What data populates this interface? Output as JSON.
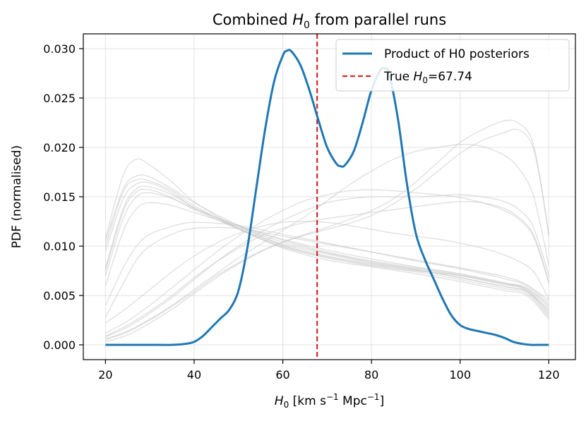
{
  "chart_data": {
    "type": "line",
    "title_prefix": "Combined ",
    "title_var": "H",
    "title_sub": "0",
    "title_suffix": " from parallel runs",
    "xlabel_var": "H",
    "xlabel_sub": "0",
    "xlabel_units": " [km s",
    "xlabel_exp1": "−1",
    "xlabel_mid": " Mpc",
    "xlabel_exp2": "−1",
    "xlabel_end": "]",
    "ylabel": "PDF (normalised)",
    "xlim": [
      15,
      126
    ],
    "ylim": [
      -0.0015,
      0.0315
    ],
    "xticks": [
      20,
      40,
      60,
      80,
      100,
      120
    ],
    "yticks": [
      0.0,
      0.005,
      0.01,
      0.015,
      0.02,
      0.025,
      0.03
    ],
    "grid": true,
    "legend_position": "top-right",
    "legend": {
      "product_label": "Product of H0 posteriors",
      "true_prefix": "True ",
      "true_var": "H",
      "true_sub": "0",
      "true_suffix": "=67.74"
    },
    "true_h0": 67.74,
    "colors": {
      "product": "#1f77b4",
      "true_line": "#d62728",
      "runs": "#c8c8c8"
    },
    "product": {
      "name": "Product of H0 posteriors",
      "x": [
        20,
        25,
        30,
        35,
        38,
        40,
        42,
        44,
        46,
        48,
        50,
        52,
        54,
        56,
        58,
        60,
        61,
        62,
        64,
        66,
        68,
        70,
        72,
        73,
        74,
        76,
        78,
        80,
        82,
        83,
        84,
        86,
        88,
        90,
        92,
        94,
        96,
        98,
        100,
        102,
        104,
        106,
        108,
        110,
        112,
        114,
        116,
        118,
        120
      ],
      "y": [
        0,
        0,
        0,
        0,
        0.0001,
        0.0003,
        0.0009,
        0.0018,
        0.0027,
        0.0036,
        0.0055,
        0.0098,
        0.0158,
        0.0218,
        0.0266,
        0.0293,
        0.0298,
        0.0297,
        0.0283,
        0.0258,
        0.0228,
        0.02,
        0.0184,
        0.0181,
        0.0182,
        0.0196,
        0.0225,
        0.0258,
        0.0278,
        0.028,
        0.0274,
        0.0228,
        0.0163,
        0.0113,
        0.0087,
        0.0067,
        0.0047,
        0.003,
        0.002,
        0.0016,
        0.0014,
        0.0012,
        0.001,
        0.0007,
        0.0003,
        0.0001,
        0,
        0,
        0
      ]
    },
    "runs": [
      {
        "x": [
          20,
          24,
          27,
          30,
          35,
          40,
          50,
          60,
          70,
          80,
          90,
          100,
          110,
          115,
          120
        ],
        "y": [
          0.0105,
          0.0158,
          0.0171,
          0.017,
          0.0158,
          0.0144,
          0.0121,
          0.0101,
          0.009,
          0.0082,
          0.0076,
          0.0068,
          0.0059,
          0.0054,
          0.003
        ]
      },
      {
        "x": [
          20,
          24,
          27,
          30,
          35,
          40,
          50,
          60,
          70,
          80,
          90,
          100,
          110,
          115,
          120
        ],
        "y": [
          0.01,
          0.0155,
          0.0167,
          0.0166,
          0.0156,
          0.0141,
          0.0118,
          0.01,
          0.0089,
          0.0081,
          0.0075,
          0.007,
          0.0062,
          0.0055,
          0.0032
        ]
      },
      {
        "x": [
          20,
          24,
          27,
          30,
          35,
          40,
          50,
          60,
          70,
          80,
          90,
          100,
          110,
          115,
          120
        ],
        "y": [
          0.0095,
          0.0148,
          0.0163,
          0.0164,
          0.0154,
          0.0139,
          0.0117,
          0.0099,
          0.0088,
          0.008,
          0.0074,
          0.0066,
          0.0057,
          0.0052,
          0.0028
        ]
      },
      {
        "x": [
          20,
          24,
          27,
          30,
          35,
          40,
          50,
          60,
          70,
          80,
          90,
          100,
          110,
          115,
          120
        ],
        "y": [
          0.0108,
          0.0172,
          0.0188,
          0.0182,
          0.0165,
          0.0145,
          0.0118,
          0.0098,
          0.0086,
          0.0079,
          0.0072,
          0.0064,
          0.0055,
          0.005,
          0.0026
        ]
      },
      {
        "x": [
          20,
          24,
          27,
          30,
          35,
          40,
          50,
          60,
          70,
          80,
          90,
          100,
          110,
          115,
          120
        ],
        "y": [
          0.0078,
          0.0138,
          0.0158,
          0.016,
          0.0152,
          0.0139,
          0.012,
          0.0104,
          0.0093,
          0.0084,
          0.0077,
          0.007,
          0.0061,
          0.0056,
          0.0034
        ]
      },
      {
        "x": [
          20,
          24,
          27,
          30,
          35,
          40,
          50,
          60,
          70,
          80,
          90,
          100,
          110,
          115,
          120
        ],
        "y": [
          0.0075,
          0.0135,
          0.0155,
          0.0157,
          0.0149,
          0.0137,
          0.0118,
          0.0102,
          0.0092,
          0.0083,
          0.0076,
          0.0068,
          0.0059,
          0.0054,
          0.0036
        ]
      },
      {
        "x": [
          20,
          24,
          27,
          30,
          35,
          40,
          50,
          60,
          70,
          80,
          90,
          100,
          110,
          115,
          120
        ],
        "y": [
          0.007,
          0.0128,
          0.015,
          0.0154,
          0.0148,
          0.0138,
          0.0121,
          0.0106,
          0.0094,
          0.0085,
          0.0078,
          0.0071,
          0.0062,
          0.0057,
          0.0038
        ]
      },
      {
        "x": [
          20,
          24,
          27,
          30,
          35,
          40,
          50,
          60,
          70,
          80,
          90,
          100,
          110,
          115,
          120
        ],
        "y": [
          0.006,
          0.0115,
          0.0138,
          0.0144,
          0.0141,
          0.0134,
          0.012,
          0.0107,
          0.0096,
          0.0087,
          0.0079,
          0.0072,
          0.0063,
          0.0058,
          0.004
        ]
      },
      {
        "x": [
          20,
          24,
          27,
          30,
          35,
          40,
          50,
          60,
          70,
          80,
          90,
          100,
          110,
          115,
          120
        ],
        "y": [
          0.004,
          0.0078,
          0.01,
          0.0112,
          0.012,
          0.0124,
          0.0121,
          0.0112,
          0.0103,
          0.0094,
          0.0085,
          0.0077,
          0.0067,
          0.006,
          0.0042
        ]
      },
      {
        "x": [
          20,
          24,
          27,
          30,
          35,
          40,
          50,
          60,
          70,
          80,
          90,
          100,
          110,
          115,
          120
        ],
        "y": [
          0.0028,
          0.0062,
          0.0086,
          0.01,
          0.0112,
          0.0118,
          0.0118,
          0.011,
          0.0102,
          0.0094,
          0.0086,
          0.0078,
          0.0069,
          0.0061,
          0.0045
        ]
      },
      {
        "x": [
          20,
          25,
          30,
          35,
          40,
          45,
          50,
          55,
          60,
          65,
          70,
          75,
          80,
          85,
          90,
          95,
          100,
          105,
          110,
          113,
          116,
          118,
          120
        ],
        "y": [
          0.0003,
          0.001,
          0.0022,
          0.0036,
          0.0052,
          0.0068,
          0.0082,
          0.0094,
          0.0104,
          0.0112,
          0.0119,
          0.0127,
          0.0136,
          0.0148,
          0.0165,
          0.0185,
          0.0205,
          0.0218,
          0.0227,
          0.0225,
          0.021,
          0.017,
          0.011
        ]
      },
      {
        "x": [
          20,
          25,
          30,
          35,
          40,
          45,
          50,
          55,
          60,
          65,
          70,
          75,
          80,
          85,
          90,
          95,
          100,
          105,
          110,
          113,
          116,
          118,
          120
        ],
        "y": [
          0.0005,
          0.0013,
          0.0025,
          0.0039,
          0.0054,
          0.007,
          0.0083,
          0.0095,
          0.0104,
          0.0111,
          0.0117,
          0.0123,
          0.0131,
          0.0143,
          0.0158,
          0.0176,
          0.0194,
          0.0207,
          0.0215,
          0.0218,
          0.0205,
          0.0168,
          0.0112
        ]
      },
      {
        "x": [
          20,
          25,
          30,
          35,
          40,
          45,
          50,
          55,
          60,
          65,
          70,
          75,
          80,
          85,
          90,
          95,
          100,
          105,
          110,
          113,
          116,
          118,
          120
        ],
        "y": [
          0.0008,
          0.0018,
          0.0032,
          0.0048,
          0.0066,
          0.0084,
          0.01,
          0.0114,
          0.0126,
          0.0136,
          0.0144,
          0.0148,
          0.015,
          0.015,
          0.015,
          0.0151,
          0.0152,
          0.015,
          0.0145,
          0.0138,
          0.0124,
          0.01,
          0.007
        ]
      },
      {
        "x": [
          20,
          25,
          30,
          35,
          40,
          45,
          50,
          55,
          60,
          65,
          70,
          75,
          80,
          85,
          90,
          95,
          100,
          105,
          110,
          113,
          116,
          118,
          120
        ],
        "y": [
          0.0012,
          0.0024,
          0.004,
          0.0058,
          0.0076,
          0.0094,
          0.011,
          0.0124,
          0.0136,
          0.0146,
          0.0152,
          0.0156,
          0.0157,
          0.0156,
          0.0154,
          0.0152,
          0.0149,
          0.0144,
          0.0136,
          0.0128,
          0.0114,
          0.0092,
          0.0062
        ]
      },
      {
        "x": [
          20,
          25,
          30,
          35,
          40,
          45,
          50,
          55,
          60,
          65,
          70,
          75,
          80,
          85,
          90,
          95,
          100,
          105,
          110,
          113,
          116,
          118,
          120
        ],
        "y": [
          0.0022,
          0.0038,
          0.0056,
          0.0074,
          0.009,
          0.0103,
          0.0113,
          0.012,
          0.0124,
          0.0125,
          0.0124,
          0.0121,
          0.0117,
          0.0113,
          0.011,
          0.0107,
          0.0103,
          0.0098,
          0.0091,
          0.0085,
          0.0077,
          0.0064,
          0.0046
        ]
      },
      {
        "x": [
          20,
          25,
          30,
          35,
          40,
          45,
          50,
          55,
          60,
          65,
          70,
          75,
          80,
          85,
          90,
          95,
          100,
          105,
          110,
          113,
          116,
          118,
          120
        ],
        "y": [
          0.0006,
          0.0014,
          0.0026,
          0.004,
          0.0056,
          0.0072,
          0.0088,
          0.0102,
          0.0116,
          0.013,
          0.0146,
          0.0162,
          0.0176,
          0.0188,
          0.0196,
          0.02,
          0.0203,
          0.0201,
          0.0192,
          0.018,
          0.0158,
          0.0124,
          0.008
        ]
      },
      {
        "x": [
          20,
          25,
          30,
          35,
          40,
          45,
          50,
          55,
          60,
          65,
          70,
          75,
          80,
          85,
          90,
          95,
          100,
          105,
          110,
          113,
          116,
          118,
          120
        ],
        "y": [
          0.0009,
          0.002,
          0.0034,
          0.005,
          0.0068,
          0.0084,
          0.0098,
          0.011,
          0.0118,
          0.0124,
          0.0128,
          0.0131,
          0.0134,
          0.0137,
          0.014,
          0.0143,
          0.0145,
          0.0144,
          0.0138,
          0.013,
          0.0116,
          0.0094,
          0.0064
        ]
      }
    ]
  }
}
